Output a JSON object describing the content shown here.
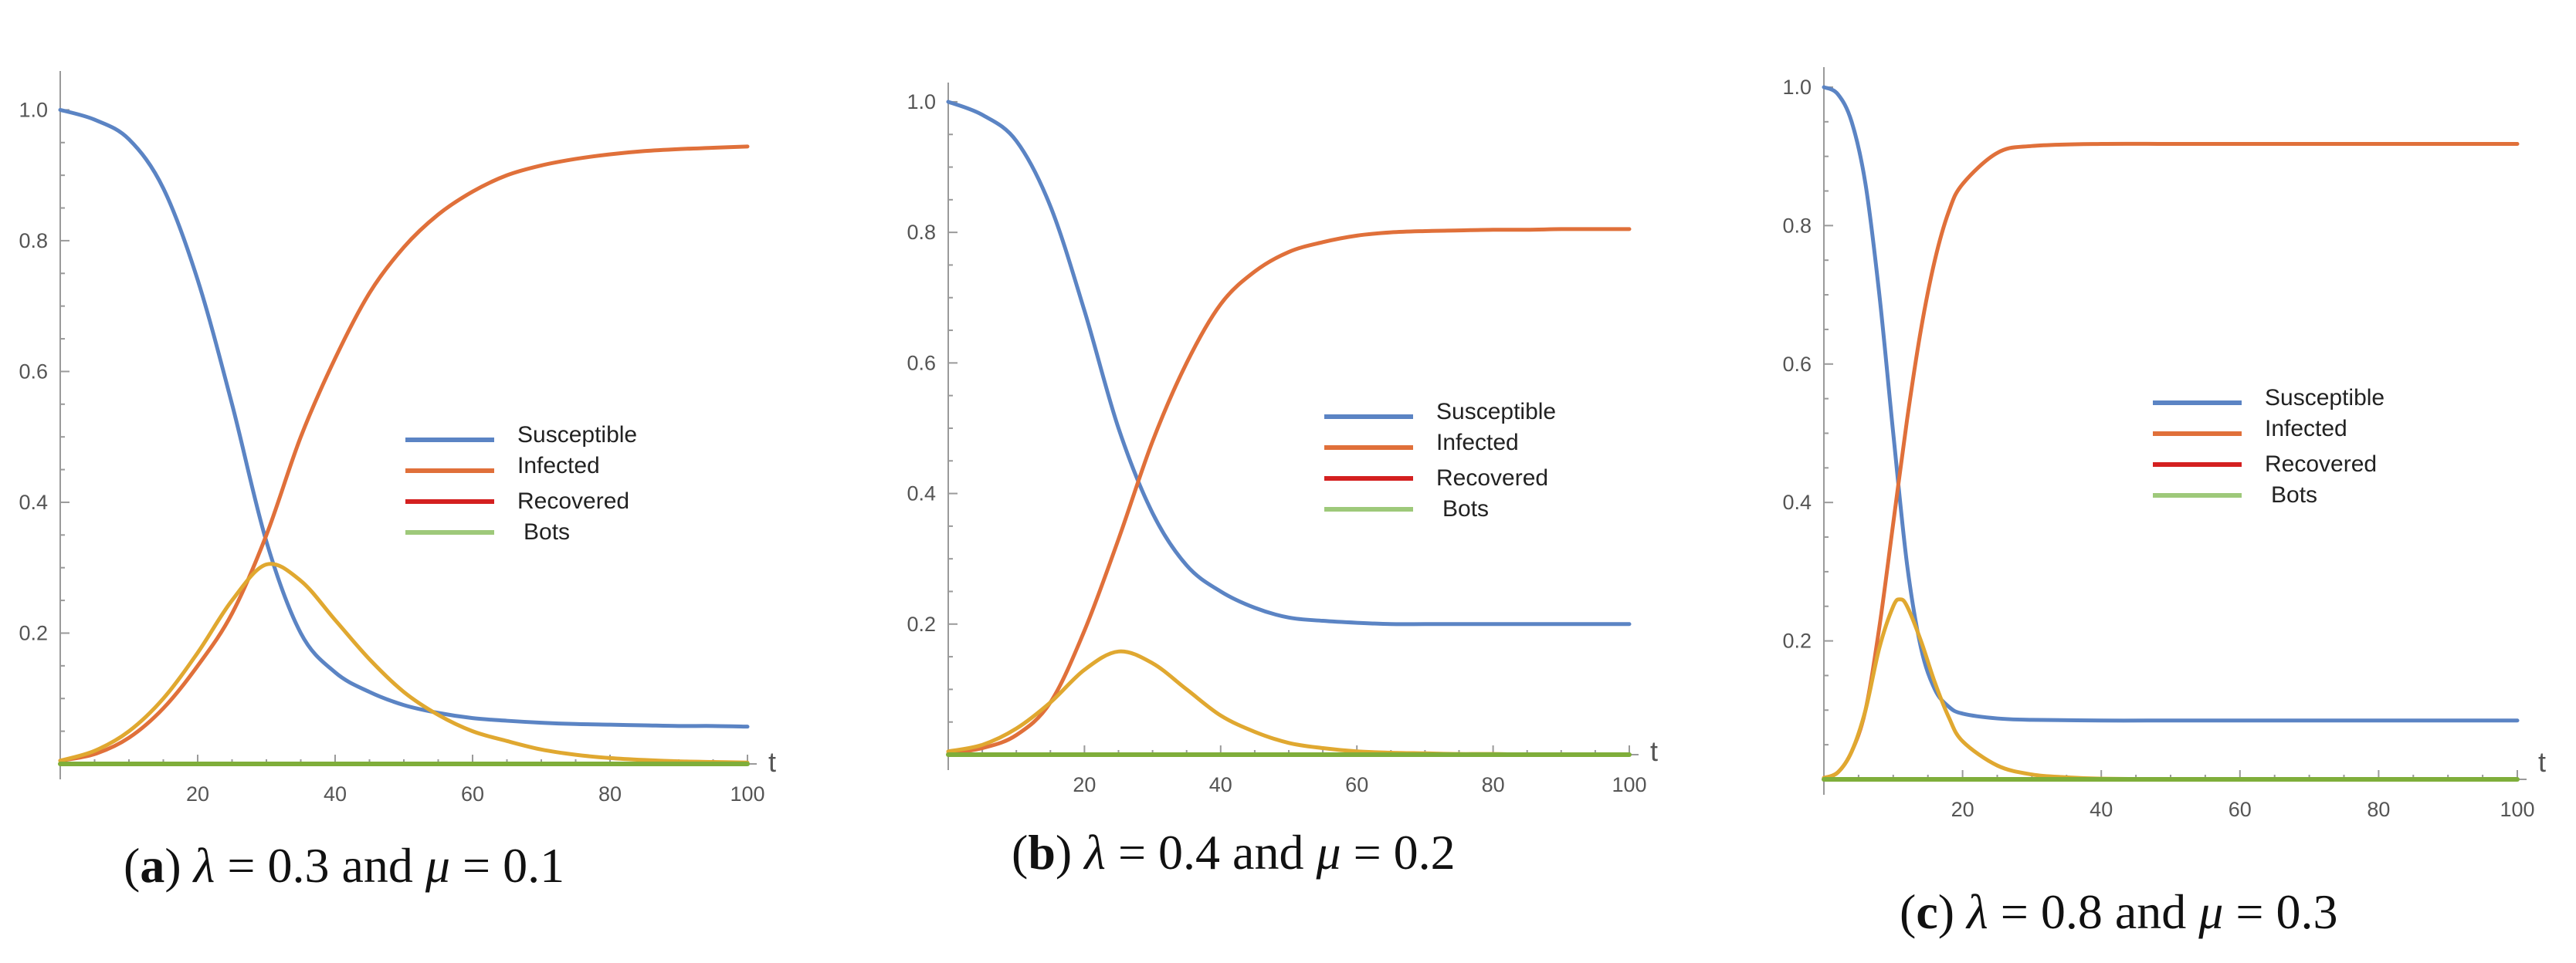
{
  "chart_data": [
    {
      "type": "line",
      "panel_label": "a",
      "caption_lambda": "0.3",
      "caption_mu": "0.1",
      "xlabel": "t",
      "ylabel": "",
      "xlim": [
        0,
        100
      ],
      "ylim": [
        0,
        1.05
      ],
      "xticks": [
        20,
        40,
        60,
        80,
        100
      ],
      "yticks": [
        0.2,
        0.4,
        0.6,
        0.8,
        1.0
      ],
      "ytick_labels": [
        "0.2",
        "0.4",
        "0.6",
        "0.8",
        "1.0"
      ],
      "legend": [
        "Susceptible",
        "Infected",
        "Recovered",
        "Bots"
      ],
      "legend_colors": [
        "#5b84c4",
        "#e0703a",
        "#d42020",
        "#9ec97a"
      ],
      "series": [
        {
          "name": "Susceptible",
          "color": "#5b84c4",
          "x": [
            0,
            5,
            10,
            15,
            20,
            25,
            30,
            35,
            40,
            45,
            50,
            55,
            60,
            65,
            70,
            75,
            80,
            85,
            90,
            95,
            100
          ],
          "y": [
            1.0,
            0.985,
            0.955,
            0.88,
            0.74,
            0.55,
            0.34,
            0.2,
            0.14,
            0.11,
            0.09,
            0.078,
            0.07,
            0.066,
            0.063,
            0.061,
            0.06,
            0.059,
            0.058,
            0.058,
            0.057
          ]
        },
        {
          "name": "Infected",
          "color": "#e0703a",
          "x": [
            0,
            5,
            10,
            15,
            20,
            25,
            30,
            35,
            40,
            45,
            50,
            55,
            60,
            65,
            70,
            75,
            80,
            85,
            90,
            95,
            100
          ],
          "y": [
            0.005,
            0.015,
            0.04,
            0.085,
            0.15,
            0.23,
            0.35,
            0.5,
            0.62,
            0.72,
            0.79,
            0.84,
            0.875,
            0.9,
            0.915,
            0.925,
            0.932,
            0.937,
            0.94,
            0.942,
            0.944
          ]
        },
        {
          "name": "Recovered",
          "color": "#e0a830",
          "x": [
            0,
            5,
            10,
            15,
            20,
            25,
            30,
            35,
            40,
            45,
            50,
            55,
            60,
            65,
            70,
            75,
            80,
            85,
            90,
            95,
            100
          ],
          "y": [
            0.005,
            0.02,
            0.05,
            0.1,
            0.17,
            0.25,
            0.305,
            0.28,
            0.22,
            0.16,
            0.11,
            0.075,
            0.05,
            0.035,
            0.022,
            0.014,
            0.009,
            0.006,
            0.004,
            0.003,
            0.002
          ]
        },
        {
          "name": "Bots",
          "color": "#7fae3a",
          "x": [
            0,
            100
          ],
          "y": [
            0.0,
            0.0
          ]
        }
      ]
    },
    {
      "type": "line",
      "panel_label": "b",
      "caption_lambda": "0.4",
      "caption_mu": "0.2",
      "xlabel": "t",
      "ylabel": "",
      "xlim": [
        0,
        100
      ],
      "ylim": [
        0,
        1.02
      ],
      "xticks": [
        20,
        40,
        60,
        80,
        100
      ],
      "yticks": [
        0.2,
        0.4,
        0.6,
        0.8,
        1.0
      ],
      "ytick_labels": [
        "0.2",
        "0.4",
        "0.6",
        "0.8",
        "1.0"
      ],
      "legend": [
        "Susceptible",
        "Infected",
        "Recovered",
        "Bots"
      ],
      "legend_colors": [
        "#5b84c4",
        "#e0703a",
        "#d42020",
        "#9ec97a"
      ],
      "series": [
        {
          "name": "Susceptible",
          "color": "#5b84c4",
          "x": [
            0,
            5,
            10,
            15,
            20,
            25,
            30,
            35,
            40,
            45,
            50,
            55,
            60,
            65,
            70,
            75,
            80,
            85,
            90,
            95,
            100
          ],
          "y": [
            1.0,
            0.98,
            0.94,
            0.84,
            0.68,
            0.5,
            0.37,
            0.29,
            0.25,
            0.225,
            0.21,
            0.205,
            0.202,
            0.2,
            0.2,
            0.2,
            0.2,
            0.2,
            0.2,
            0.2,
            0.2
          ]
        },
        {
          "name": "Infected",
          "color": "#e0703a",
          "x": [
            0,
            5,
            10,
            15,
            20,
            25,
            30,
            35,
            40,
            45,
            50,
            55,
            60,
            65,
            70,
            75,
            80,
            85,
            90,
            95,
            100
          ],
          "y": [
            0.002,
            0.01,
            0.03,
            0.08,
            0.19,
            0.33,
            0.48,
            0.6,
            0.69,
            0.74,
            0.77,
            0.785,
            0.795,
            0.8,
            0.802,
            0.803,
            0.804,
            0.804,
            0.805,
            0.805,
            0.805
          ]
        },
        {
          "name": "Recovered",
          "color": "#e0a830",
          "x": [
            0,
            5,
            10,
            15,
            20,
            25,
            30,
            35,
            40,
            45,
            50,
            55,
            60,
            65,
            70,
            75,
            80,
            85,
            90,
            95,
            100
          ],
          "y": [
            0.005,
            0.015,
            0.04,
            0.08,
            0.13,
            0.158,
            0.14,
            0.1,
            0.06,
            0.035,
            0.018,
            0.01,
            0.005,
            0.003,
            0.002,
            0.001,
            0.001,
            0.0,
            0.0,
            0.0,
            0.0
          ]
        },
        {
          "name": "Bots",
          "color": "#7fae3a",
          "x": [
            0,
            100
          ],
          "y": [
            0.0,
            0.0
          ]
        }
      ]
    },
    {
      "type": "line",
      "panel_label": "c",
      "caption_lambda": "0.8",
      "caption_mu": "0.3",
      "xlabel": "t",
      "ylabel": "",
      "xlim": [
        0,
        100
      ],
      "ylim": [
        0,
        1.02
      ],
      "xticks": [
        20,
        40,
        60,
        80,
        100
      ],
      "yticks": [
        0.2,
        0.4,
        0.6,
        0.8,
        1.0
      ],
      "ytick_labels": [
        "0.2",
        "0.4",
        "0.6",
        "0.8",
        "1.0"
      ],
      "legend": [
        "Susceptible",
        "Infected",
        "Recovered",
        "Bots"
      ],
      "legend_colors": [
        "#5b84c4",
        "#e0703a",
        "#d42020",
        "#9ec97a"
      ],
      "series": [
        {
          "name": "Susceptible",
          "color": "#5b84c4",
          "x": [
            0,
            2,
            4,
            6,
            8,
            10,
            12,
            14,
            16,
            18,
            20,
            25,
            30,
            40,
            50,
            60,
            70,
            80,
            90,
            100
          ],
          "y": [
            1.0,
            0.99,
            0.95,
            0.86,
            0.7,
            0.5,
            0.31,
            0.19,
            0.13,
            0.105,
            0.095,
            0.088,
            0.086,
            0.085,
            0.085,
            0.085,
            0.085,
            0.085,
            0.085,
            0.085
          ]
        },
        {
          "name": "Infected",
          "color": "#e0703a",
          "x": [
            0,
            2,
            4,
            6,
            8,
            10,
            12,
            14,
            16,
            18,
            20,
            25,
            30,
            40,
            50,
            60,
            70,
            80,
            90,
            100
          ],
          "y": [
            0.002,
            0.01,
            0.04,
            0.1,
            0.22,
            0.37,
            0.52,
            0.65,
            0.75,
            0.82,
            0.86,
            0.905,
            0.915,
            0.918,
            0.918,
            0.918,
            0.918,
            0.918,
            0.918,
            0.918
          ]
        },
        {
          "name": "Recovered",
          "color": "#e0a830",
          "x": [
            0,
            2,
            4,
            6,
            8,
            10,
            11,
            12,
            14,
            16,
            18,
            20,
            25,
            30,
            35,
            40,
            50,
            60,
            100
          ],
          "y": [
            0.002,
            0.01,
            0.04,
            0.1,
            0.19,
            0.25,
            0.26,
            0.25,
            0.2,
            0.14,
            0.09,
            0.055,
            0.02,
            0.007,
            0.003,
            0.001,
            0.0,
            0.0,
            0.0
          ]
        },
        {
          "name": "Bots",
          "color": "#7fae3a",
          "x": [
            0,
            100
          ],
          "y": [
            0.0,
            0.0
          ]
        }
      ]
    }
  ]
}
